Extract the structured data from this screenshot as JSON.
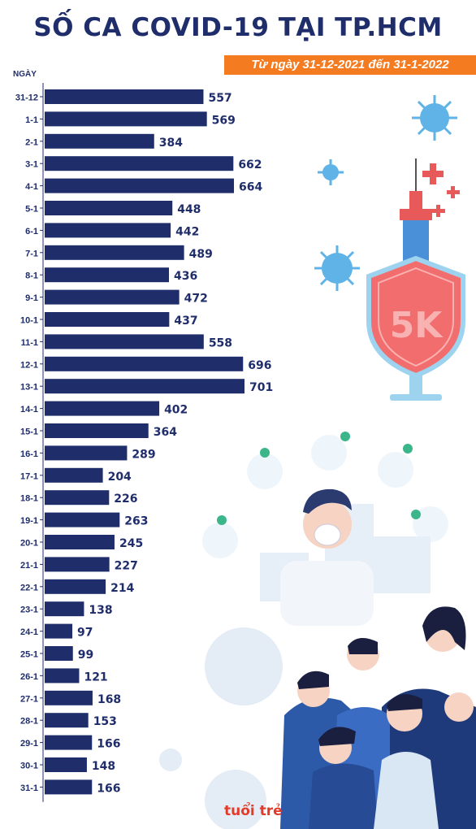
{
  "header": {
    "title": "SỐ CA COVID-19 TẠI TP.HCM",
    "subtitle": "Từ ngày 31-12-2021 đến 31-1-2022",
    "axis_header": "NGÀY"
  },
  "decorations": {
    "shield_text": "5K",
    "brand": "tuổi trẻ"
  },
  "colors": {
    "bar": "#1f2d6b",
    "subtitle_bg": "#f47b20",
    "shield": "#f26d6d"
  },
  "chart_data": {
    "type": "bar",
    "orientation": "horizontal",
    "title": "SỐ CA COVID-19 TẠI TP.HCM",
    "subtitle": "Từ ngày 31-12-2021 đến 31-1-2022",
    "ylabel": "NGÀY",
    "xlabel": "",
    "categories": [
      "31-12",
      "1-1",
      "2-1",
      "3-1",
      "4-1",
      "5-1",
      "6-1",
      "7-1",
      "8-1",
      "9-1",
      "10-1",
      "11-1",
      "12-1",
      "13-1",
      "14-1",
      "15-1",
      "16-1",
      "17-1",
      "18-1",
      "19-1",
      "20-1",
      "21-1",
      "22-1",
      "23-1",
      "24-1",
      "25-1",
      "26-1",
      "27-1",
      "28-1",
      "29-1",
      "30-1",
      "31-1"
    ],
    "values": [
      557,
      569,
      384,
      662,
      664,
      448,
      442,
      489,
      436,
      472,
      437,
      558,
      696,
      701,
      402,
      364,
      289,
      204,
      226,
      263,
      245,
      227,
      214,
      138,
      97,
      99,
      121,
      168,
      153,
      166,
      148,
      166
    ],
    "xlim": [
      0,
      701
    ],
    "grid": false,
    "legend": "none"
  }
}
